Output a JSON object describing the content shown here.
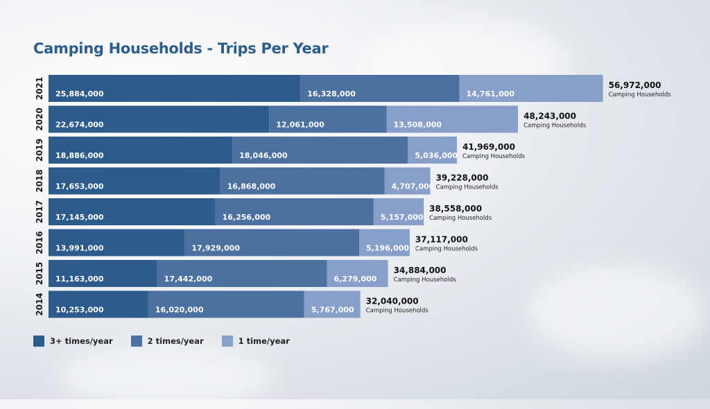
{
  "chart_data": {
    "type": "bar",
    "orientation": "horizontal",
    "stacked": true,
    "title": "Camping Households - Trips Per Year",
    "categories": [
      "2021",
      "2020",
      "2019",
      "2018",
      "2017",
      "2016",
      "2015",
      "2014"
    ],
    "series": [
      {
        "name": "3+ times/year",
        "color": "#2d5b8c",
        "values": [
          25884000,
          22674000,
          18886000,
          17653000,
          17145000,
          13991000,
          11163000,
          10253000
        ]
      },
      {
        "name": "2 times/year",
        "color": "#4c70a0",
        "values": [
          16328000,
          12061000,
          18046000,
          16868000,
          16256000,
          17929000,
          17442000,
          16020000
        ]
      },
      {
        "name": "1 time/year",
        "color": "#879fc9",
        "values": [
          14761000,
          13508000,
          5036000,
          4707000,
          5157000,
          5196000,
          6279000,
          5767000
        ]
      }
    ],
    "totals": [
      56972000,
      48243000,
      41969000,
      39228000,
      38558000,
      37117000,
      34884000,
      32040000
    ],
    "total_caption": "Camping Households",
    "legend_position": "bottom-left",
    "grid": false
  }
}
